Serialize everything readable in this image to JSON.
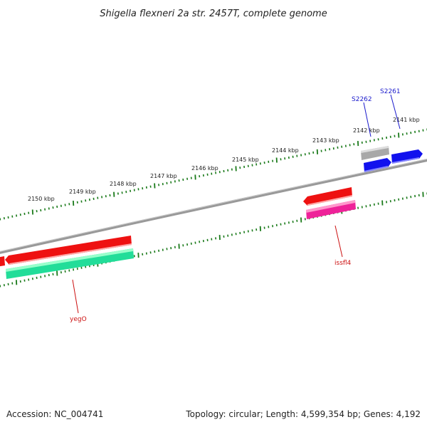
{
  "title": "Shigella flexneri 2a str. 2457T, complete genome",
  "footer": {
    "accession": "Accession: NC_004741",
    "summary": "Topology: circular; Length: 4,599,354 bp; Genes: 4,192"
  },
  "colors": {
    "backbone": "#888888",
    "tick": "#1a7a1a",
    "label_blue": "#1a1acc",
    "label_red": "#cc1111",
    "red_feature": "#ee1111",
    "teal_feature": "#22dd99",
    "magenta_feature": "#ee2299",
    "blue_feature": "#1111ee",
    "gray_feature": "#b0b0b0"
  },
  "ticks": [
    {
      "label": "2141 kbp"
    },
    {
      "label": "2142 kbp"
    },
    {
      "label": "2143 kbp"
    },
    {
      "label": "2144 kbp"
    },
    {
      "label": "2145 kbp"
    },
    {
      "label": "2146 kbp"
    },
    {
      "label": "2147 kbp"
    },
    {
      "label": "2148 kbp"
    },
    {
      "label": "2149 kbp"
    },
    {
      "label": "2150 kbp"
    }
  ],
  "features": [
    {
      "label": "S2261",
      "color": "blue"
    },
    {
      "label": "S2262",
      "color": "blue"
    },
    {
      "label": "issfl4",
      "color": "red"
    },
    {
      "label": "yegO",
      "color": "red"
    }
  ]
}
